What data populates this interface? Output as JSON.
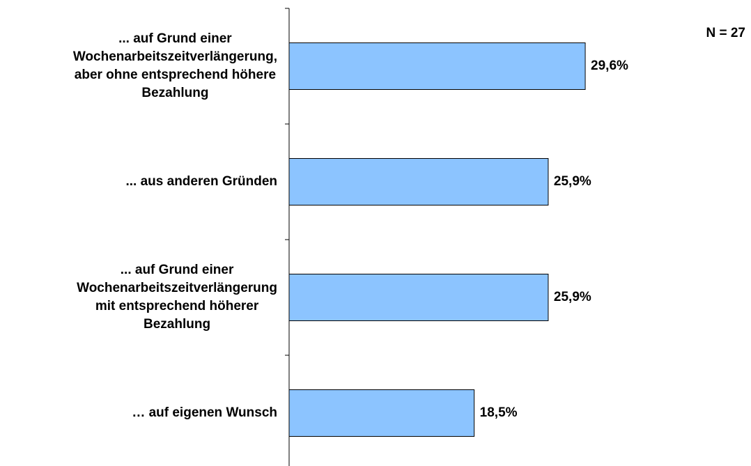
{
  "chart_data": {
    "type": "barh",
    "annotation": "N = 27",
    "categories": [
      "... auf Grund einer\nWochenarbeitszeitverlängerung,\naber ohne entsprechend höhere\nBezahlung",
      "... aus anderen Gründen",
      "... auf Grund einer\nWochenarbeitszeitverlängerung\nmit entsprechend höherer\nBezahlung",
      "… auf eigenen Wunsch"
    ],
    "values": [
      29.6,
      25.9,
      25.9,
      18.5
    ],
    "value_labels": [
      "29,6%",
      "25,9%",
      "25,9%",
      "18,5%"
    ],
    "color": "#8cc4ff"
  }
}
